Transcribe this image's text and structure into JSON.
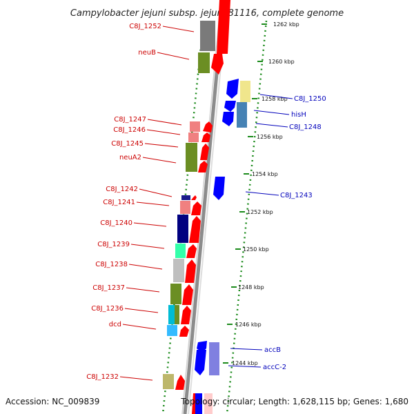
{
  "header": {
    "title": "Campylobacter jejuni subsp. jejuni 81116, complete genome"
  },
  "footer": {
    "accession": "Accession: NC_009839",
    "topology": "Topology: circular; Length: 1,628,115 bp; Genes: 1,680"
  },
  "ruler_marks": [
    "1262 kbp",
    "1260 kbp",
    "1258 kbp",
    "1256 kbp",
    "1254 kbp",
    "1252 kbp",
    "1250 kbp",
    "1248 kbp",
    "1246 kbp",
    "1244 kbp"
  ],
  "genes_left": [
    {
      "label": "C8J_1252"
    },
    {
      "label": "neuB"
    },
    {
      "label": "C8J_1247"
    },
    {
      "label": "C8J_1246"
    },
    {
      "label": "C8J_1245"
    },
    {
      "label": "neuA2"
    },
    {
      "label": "C8J_1242"
    },
    {
      "label": "C8J_1241"
    },
    {
      "label": "C8J_1240"
    },
    {
      "label": "C8J_1239"
    },
    {
      "label": "C8J_1238"
    },
    {
      "label": "C8J_1237"
    },
    {
      "label": "C8J_1236"
    },
    {
      "label": "dcd"
    },
    {
      "label": "C8J_1232"
    }
  ],
  "genes_right": [
    {
      "label": "C8J_1250"
    },
    {
      "label": "hisH"
    },
    {
      "label": "C8J_1248"
    },
    {
      "label": "C8J_1243"
    },
    {
      "label": "accB"
    },
    {
      "label": "accC-2"
    }
  ],
  "colors": {
    "forward_strand": "#ff0000",
    "reverse_strand": "#0000ff",
    "backbone": "#999999",
    "tick_green": "#1a8a1a",
    "label_red": "#cc0000",
    "label_blue": "#0000bb"
  }
}
